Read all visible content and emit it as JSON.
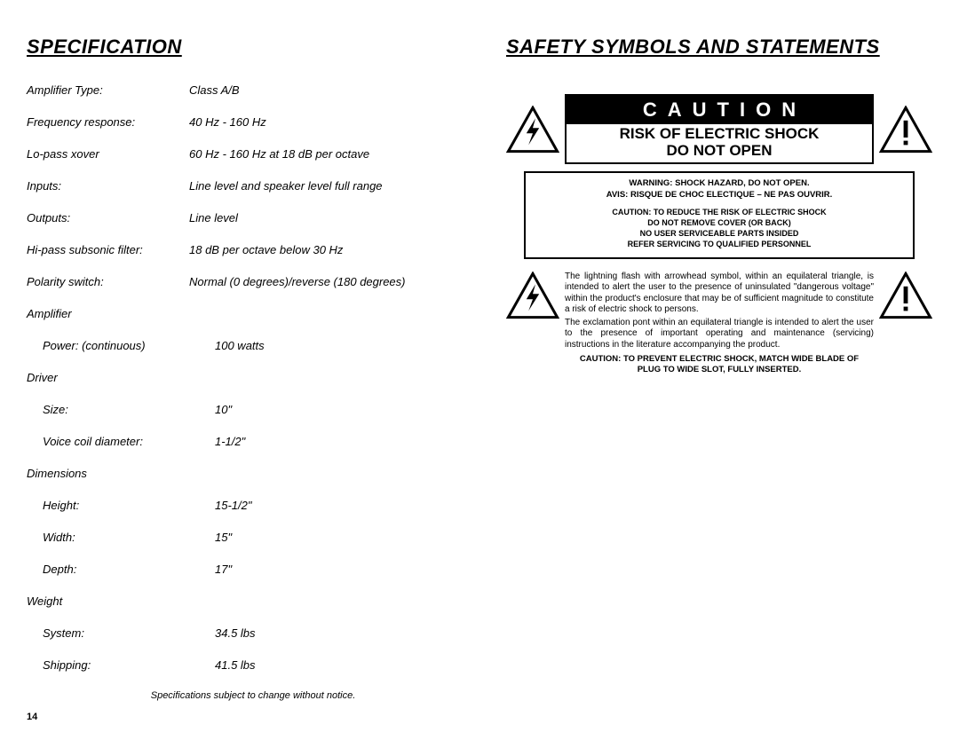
{
  "left": {
    "title": "SPECIFICATION",
    "specs": [
      {
        "label": "Amplifier Type:",
        "value": "Class A/B"
      },
      {
        "label": "Frequency response:",
        "value": "40 Hz - 160 Hz"
      },
      {
        "label": "Lo-pass xover",
        "value": "60 Hz - 160 Hz at 18 dB per octave"
      },
      {
        "label": "Inputs:",
        "value": "Line level and speaker level full range"
      },
      {
        "label": "Outputs:",
        "value": "Line level"
      },
      {
        "label": "Hi-pass subsonic filter:",
        "value": "18 dB per octave below 30 Hz"
      },
      {
        "label": "Polarity switch:",
        "value": "Normal (0 degrees)/reverse (180 degrees)"
      }
    ],
    "groups": [
      {
        "header": "Amplifier",
        "rows": [
          {
            "label": "Power: (continuous)",
            "value": "100 watts"
          }
        ]
      },
      {
        "header": "Driver",
        "rows": [
          {
            "label": "Size:",
            "value": "10\""
          },
          {
            "label": "Voice coil diameter:",
            "value": "1-1/2\""
          }
        ]
      },
      {
        "header": "Dimensions",
        "rows": [
          {
            "label": "Height:",
            "value": "15-1/2\""
          },
          {
            "label": "Width:",
            "value": "15\""
          },
          {
            "label": "Depth:",
            "value": "17\""
          }
        ]
      },
      {
        "header": "Weight",
        "rows": [
          {
            "label": "System:",
            "value": "34.5 lbs"
          },
          {
            "label": "Shipping:",
            "value": "41.5 lbs"
          }
        ]
      }
    ],
    "note": "Specifications subject to change without notice.",
    "page_num": "14"
  },
  "right": {
    "title": "SAFETY SYMBOLS AND STATEMENTS",
    "caution_word": "CAUTION",
    "risk_line1": "RISK OF ELECTRIC SHOCK",
    "risk_line2": "DO NOT OPEN",
    "warn1": "WARNING: SHOCK HAZARD, DO NOT OPEN.",
    "warn2": "AVIS: RISQUE DE CHOC ELECTIQUE – NE PAS OUVRIR.",
    "sub1": "CAUTION: TO REDUCE THE RISK OF ELECTRIC SHOCK",
    "sub2": "DO NOT REMOVE COVER (OR BACK)",
    "sub3": "NO USER SERVICEABLE PARTS INSIDED",
    "sub4": "REFER SERVICING TO QUALIFIED PERSONNEL",
    "explain1": "The lightning flash with arrowhead symbol, within an equilateral triangle, is intended to alert the user to the presence of uninsulated \"dangerous voltage\" within the product's enclosure that may be of sufficient magnitude to constitute a risk of electric shock to persons.",
    "explain2": "The exclamation pont within an equilateral triangle is intended to alert the user to the presence of important operating and maintenance (servicing) instructions in the literature accompanying the product.",
    "foot1": "CAUTION: TO PREVENT ELECTRIC SHOCK, MATCH WIDE BLADE OF",
    "foot2": "PLUG TO WIDE SLOT, FULLY INSERTED."
  }
}
